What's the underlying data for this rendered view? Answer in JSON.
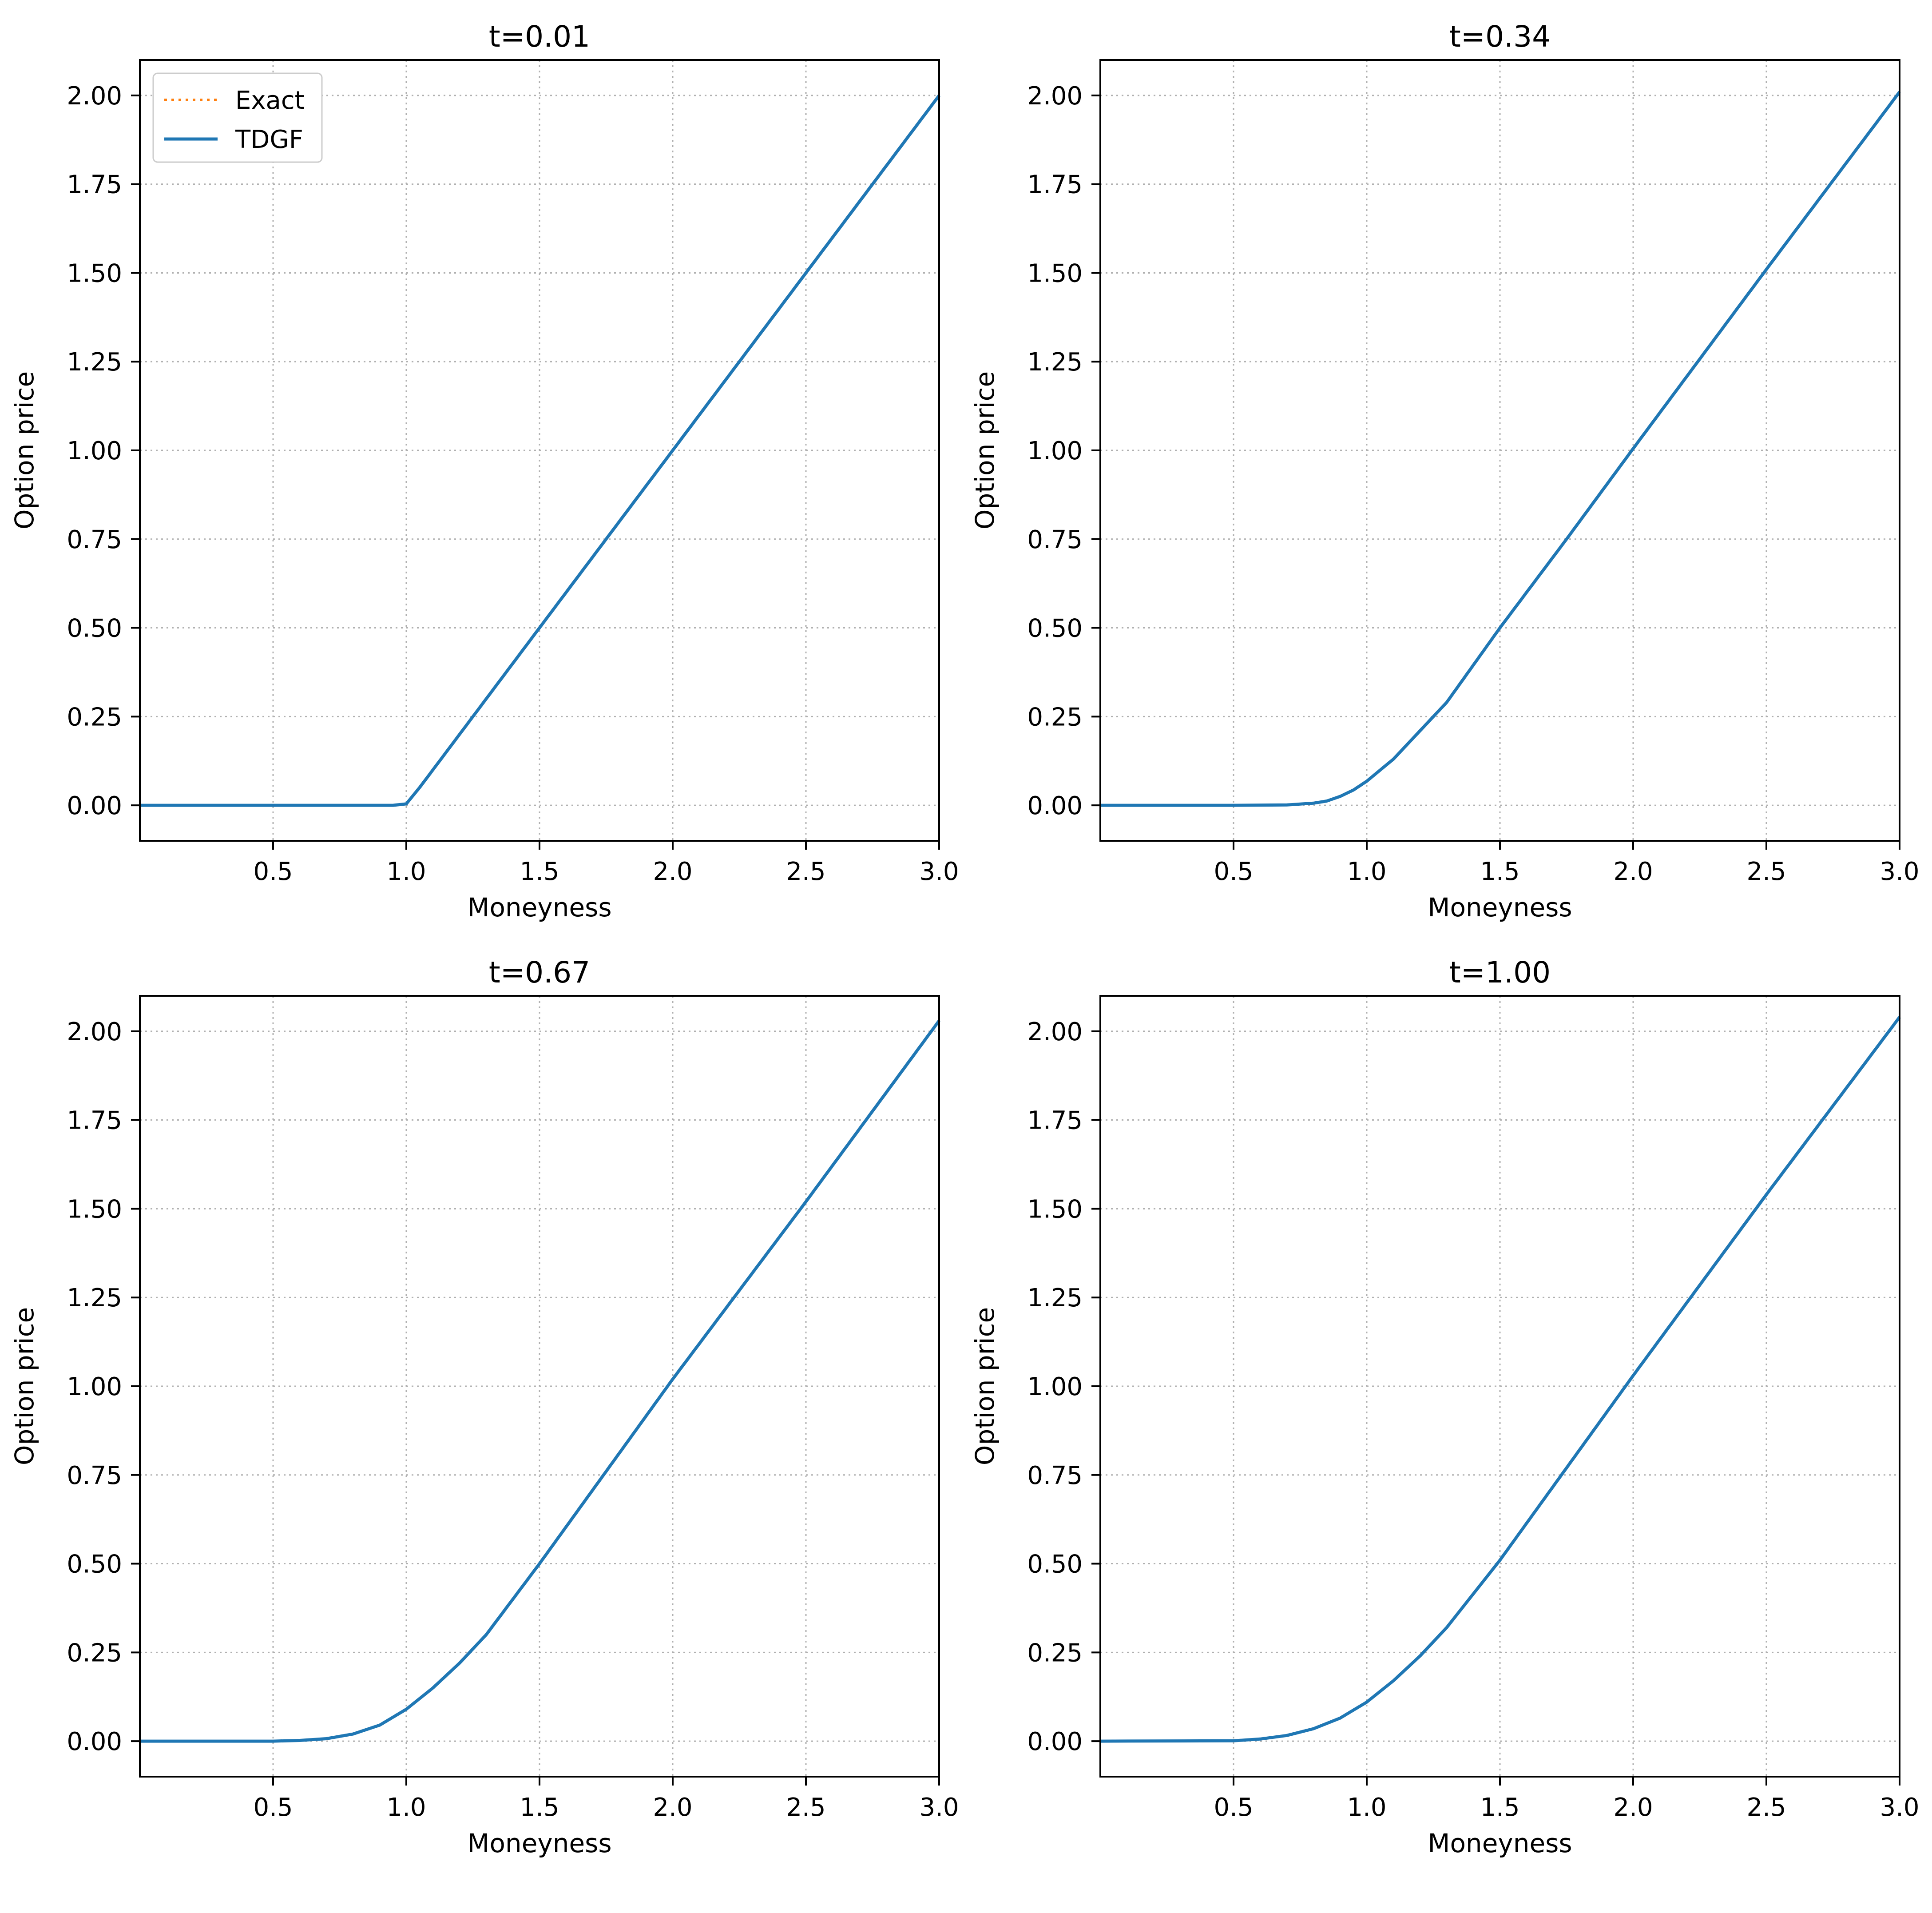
{
  "figure": {
    "background": "#ffffff"
  },
  "style": {
    "exact_color": "#ff7f0e",
    "tdgf_color": "#1f77b4",
    "grid_color": "#b0b0b0",
    "axes_color": "#000000"
  },
  "chart_data": [
    {
      "type": "line",
      "title": "t=0.01",
      "xlabel": "Moneyness",
      "ylabel": "Option price",
      "xlim": [
        0.0,
        3.0
      ],
      "ylim": [
        -0.1,
        2.1
      ],
      "xticks": [
        0.5,
        1.0,
        1.5,
        2.0,
        2.5,
        3.0
      ],
      "xtick_labels": [
        "0.5",
        "1.0",
        "1.5",
        "2.0",
        "2.5",
        "3.0"
      ],
      "yticks": [
        0.0,
        0.25,
        0.5,
        0.75,
        1.0,
        1.25,
        1.5,
        1.75,
        2.0
      ],
      "ytick_labels": [
        "0.00",
        "0.25",
        "0.50",
        "0.75",
        "1.00",
        "1.25",
        "1.50",
        "1.75",
        "2.00"
      ],
      "grid": true,
      "legend": {
        "show": true,
        "placement": "upper left",
        "entries": [
          "Exact",
          "TDGF"
        ]
      },
      "series": [
        {
          "name": "Exact",
          "style": "dotted",
          "color": "#ff7f0e",
          "x": [
            0.0,
            0.5,
            0.9,
            0.95,
            1.0,
            1.05,
            1.1,
            1.2,
            1.5,
            2.0,
            2.5,
            3.0
          ],
          "y": [
            0.0,
            0.0,
            0.0,
            0.0,
            0.004,
            0.05,
            0.1,
            0.2,
            0.5,
            1.0,
            1.5,
            2.0
          ]
        },
        {
          "name": "TDGF",
          "style": "solid",
          "color": "#1f77b4",
          "x": [
            0.0,
            0.5,
            0.9,
            0.95,
            1.0,
            1.05,
            1.1,
            1.2,
            1.5,
            2.0,
            2.5,
            3.0
          ],
          "y": [
            0.0,
            0.0,
            0.0,
            0.0,
            0.004,
            0.05,
            0.1,
            0.2,
            0.5,
            1.0,
            1.5,
            2.0
          ]
        }
      ]
    },
    {
      "type": "line",
      "title": "t=0.34",
      "xlabel": "Moneyness",
      "ylabel": "Option price",
      "xlim": [
        0.0,
        3.0
      ],
      "ylim": [
        -0.1,
        2.1
      ],
      "xticks": [
        0.5,
        1.0,
        1.5,
        2.0,
        2.5,
        3.0
      ],
      "xtick_labels": [
        "0.5",
        "1.0",
        "1.5",
        "2.0",
        "2.5",
        "3.0"
      ],
      "yticks": [
        0.0,
        0.25,
        0.5,
        0.75,
        1.0,
        1.25,
        1.5,
        1.75,
        2.0
      ],
      "ytick_labels": [
        "0.00",
        "0.25",
        "0.50",
        "0.75",
        "1.00",
        "1.25",
        "1.50",
        "1.75",
        "2.00"
      ],
      "grid": true,
      "series": [
        {
          "name": "Exact",
          "style": "dotted",
          "color": "#ff7f0e",
          "x": [
            0.0,
            0.5,
            0.7,
            0.8,
            0.85,
            0.9,
            0.95,
            1.0,
            1.1,
            1.2,
            1.3,
            1.5,
            1.75,
            2.0,
            2.5,
            3.0
          ],
          "y": [
            0.0,
            0.0,
            0.001,
            0.006,
            0.012,
            0.025,
            0.043,
            0.068,
            0.13,
            0.21,
            0.29,
            0.5,
            0.75,
            1.005,
            1.51,
            2.01
          ]
        },
        {
          "name": "TDGF",
          "style": "solid",
          "color": "#1f77b4",
          "x": [
            0.0,
            0.5,
            0.7,
            0.8,
            0.85,
            0.9,
            0.95,
            1.0,
            1.1,
            1.2,
            1.3,
            1.5,
            1.75,
            2.0,
            2.5,
            3.0
          ],
          "y": [
            0.0,
            0.0,
            0.001,
            0.006,
            0.012,
            0.025,
            0.043,
            0.068,
            0.13,
            0.21,
            0.29,
            0.5,
            0.75,
            1.005,
            1.51,
            2.01
          ]
        }
      ]
    },
    {
      "type": "line",
      "title": "t=0.67",
      "xlabel": "Moneyness",
      "ylabel": "Option price",
      "xlim": [
        0.0,
        3.0
      ],
      "ylim": [
        -0.1,
        2.1
      ],
      "xticks": [
        0.5,
        1.0,
        1.5,
        2.0,
        2.5,
        3.0
      ],
      "xtick_labels": [
        "0.5",
        "1.0",
        "1.5",
        "2.0",
        "2.5",
        "3.0"
      ],
      "yticks": [
        0.0,
        0.25,
        0.5,
        0.75,
        1.0,
        1.25,
        1.5,
        1.75,
        2.0
      ],
      "ytick_labels": [
        "0.00",
        "0.25",
        "0.50",
        "0.75",
        "1.00",
        "1.25",
        "1.50",
        "1.75",
        "2.00"
      ],
      "grid": true,
      "series": [
        {
          "name": "Exact",
          "style": "dotted",
          "color": "#ff7f0e",
          "x": [
            0.0,
            0.5,
            0.6,
            0.7,
            0.8,
            0.9,
            1.0,
            1.1,
            1.2,
            1.3,
            1.5,
            1.75,
            2.0,
            2.5,
            3.0
          ],
          "y": [
            0.0,
            0.0,
            0.002,
            0.007,
            0.02,
            0.045,
            0.09,
            0.15,
            0.22,
            0.3,
            0.5,
            0.76,
            1.02,
            1.52,
            2.03
          ]
        },
        {
          "name": "TDGF",
          "style": "solid",
          "color": "#1f77b4",
          "x": [
            0.0,
            0.5,
            0.6,
            0.7,
            0.8,
            0.9,
            1.0,
            1.1,
            1.2,
            1.3,
            1.5,
            1.75,
            2.0,
            2.5,
            3.0
          ],
          "y": [
            0.0,
            0.0,
            0.002,
            0.007,
            0.02,
            0.045,
            0.09,
            0.15,
            0.22,
            0.3,
            0.5,
            0.76,
            1.02,
            1.52,
            2.03
          ]
        }
      ]
    },
    {
      "type": "line",
      "title": "t=1.00",
      "xlabel": "Moneyness",
      "ylabel": "Option price",
      "xlim": [
        0.0,
        3.0
      ],
      "ylim": [
        -0.1,
        2.1
      ],
      "xticks": [
        0.5,
        1.0,
        1.5,
        2.0,
        2.5,
        3.0
      ],
      "xtick_labels": [
        "0.5",
        "1.0",
        "1.5",
        "2.0",
        "2.5",
        "3.0"
      ],
      "yticks": [
        0.0,
        0.25,
        0.5,
        0.75,
        1.0,
        1.25,
        1.5,
        1.75,
        2.0
      ],
      "ytick_labels": [
        "0.00",
        "0.25",
        "0.50",
        "0.75",
        "1.00",
        "1.25",
        "1.50",
        "1.75",
        "2.00"
      ],
      "grid": true,
      "series": [
        {
          "name": "Exact",
          "style": "dotted",
          "color": "#ff7f0e",
          "x": [
            0.0,
            0.5,
            0.6,
            0.7,
            0.8,
            0.9,
            1.0,
            1.1,
            1.2,
            1.3,
            1.5,
            1.75,
            2.0,
            2.5,
            3.0
          ],
          "y": [
            0.0,
            0.001,
            0.006,
            0.016,
            0.035,
            0.065,
            0.11,
            0.17,
            0.24,
            0.32,
            0.51,
            0.77,
            1.03,
            1.54,
            2.04
          ]
        },
        {
          "name": "TDGF",
          "style": "solid",
          "color": "#1f77b4",
          "x": [
            0.0,
            0.5,
            0.6,
            0.7,
            0.8,
            0.9,
            1.0,
            1.1,
            1.2,
            1.3,
            1.5,
            1.75,
            2.0,
            2.5,
            3.0
          ],
          "y": [
            0.0,
            0.001,
            0.006,
            0.016,
            0.035,
            0.065,
            0.11,
            0.17,
            0.24,
            0.32,
            0.51,
            0.77,
            1.03,
            1.54,
            2.04
          ]
        }
      ]
    }
  ]
}
